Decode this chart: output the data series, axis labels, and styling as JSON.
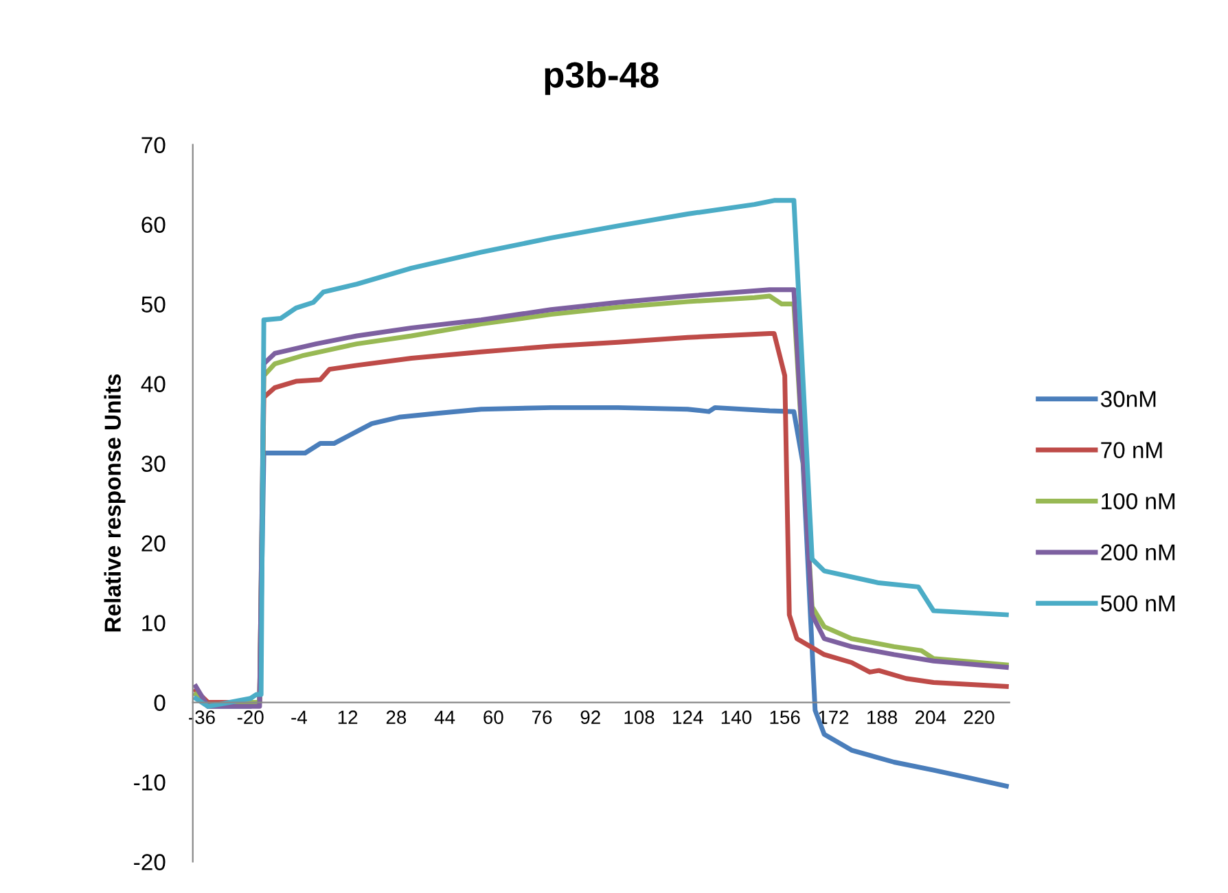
{
  "chart_data": {
    "type": "line",
    "title": "p3b-48",
    "ylabel": "Relative response Units",
    "xlim": [
      -39,
      230
    ],
    "xticks": [
      -36,
      -20,
      -4,
      12,
      28,
      44,
      60,
      76,
      92,
      108,
      124,
      140,
      156,
      172,
      188,
      204,
      220
    ],
    "ylim": [
      -20,
      70
    ],
    "yticks": [
      -20,
      -10,
      0,
      10,
      20,
      30,
      40,
      50,
      60,
      70
    ],
    "grid": false,
    "legend": "right",
    "marker": "none",
    "line_style": "solid",
    "series": [
      {
        "name": "30nM",
        "color": "#4a7ebb",
        "x": [
          -38,
          -34,
          -20,
          -17,
          -15.6,
          -12,
          -2,
          3,
          7.5,
          20,
          29,
          42,
          56,
          79,
          101,
          124,
          131,
          133,
          151,
          159,
          162,
          166,
          169,
          178,
          192,
          205,
          217,
          229
        ],
        "values": [
          1,
          -0.5,
          -0.5,
          0,
          31.3,
          31.3,
          31.3,
          32.5,
          32.5,
          35,
          35.8,
          36.3,
          36.8,
          37,
          37,
          36.8,
          36.5,
          37,
          36.6,
          36.5,
          30,
          -1,
          -4,
          -6,
          -7.5,
          -8.5,
          -9.5,
          -10.5
        ]
      },
      {
        "name": "70 nM",
        "color": "#be4b48",
        "x": [
          -38,
          -34,
          -20,
          -17,
          -15.6,
          -12,
          -5,
          3,
          6,
          15,
          33,
          56,
          79,
          101,
          124,
          151,
          152.5,
          156,
          157.5,
          160,
          169,
          178,
          184,
          187,
          196,
          205,
          229
        ],
        "values": [
          1.5,
          0,
          0,
          0,
          38.3,
          39.5,
          40.3,
          40.5,
          41.8,
          42.3,
          43.2,
          44,
          44.7,
          45.2,
          45.8,
          46.3,
          46.3,
          41,
          11,
          8,
          6,
          5,
          3.8,
          4,
          3,
          2.5,
          2
        ]
      },
      {
        "name": "100 nM",
        "color": "#98b954",
        "x": [
          -38,
          -34,
          -20,
          -17,
          -15.6,
          -12,
          -3,
          15,
          33,
          56,
          79,
          101,
          124,
          146,
          151,
          155,
          159,
          165,
          169,
          178,
          192,
          201,
          205,
          229
        ],
        "values": [
          1,
          -0.5,
          0,
          0,
          41,
          42.5,
          43.5,
          45,
          46,
          47.5,
          48.7,
          49.6,
          50.3,
          50.8,
          51,
          50,
          50,
          12,
          9.5,
          8,
          7,
          6.5,
          5.5,
          4.7
        ]
      },
      {
        "name": "200 nM",
        "color": "#7d60a0",
        "x": [
          -38,
          -34,
          -20,
          -17,
          -15.6,
          -12,
          1.6,
          15,
          33,
          56,
          79,
          101,
          124,
          151,
          159,
          165,
          169,
          178,
          192,
          205,
          229
        ],
        "values": [
          2,
          -0.5,
          -0.5,
          -0.5,
          42.5,
          43.8,
          45,
          46,
          47,
          48,
          49.3,
          50.2,
          51,
          51.8,
          51.8,
          11,
          8,
          7,
          6,
          5.2,
          4.4
        ]
      },
      {
        "name": "500 nM",
        "color": "#4bacc6",
        "x": [
          -38,
          -34,
          -20,
          -18,
          -16.5,
          -15.6,
          -10,
          -5,
          0.7,
          4,
          15,
          33,
          56,
          79,
          101,
          124,
          146,
          152.5,
          159,
          165,
          169,
          187,
          200,
          205,
          229
        ],
        "values": [
          0.5,
          -0.5,
          0.5,
          1,
          1,
          48,
          48.2,
          49.5,
          50.2,
          51.5,
          52.5,
          54.5,
          56.5,
          58.3,
          59.8,
          61.3,
          62.5,
          63,
          63,
          18,
          16.5,
          15,
          14.5,
          11.5,
          11
        ]
      }
    ]
  }
}
